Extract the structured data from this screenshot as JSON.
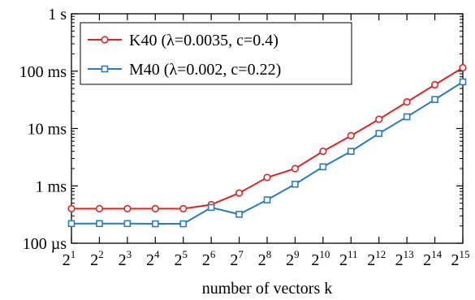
{
  "chart_data": {
    "type": "line",
    "xlabel": "number of vectors k",
    "ylabel": "",
    "x_scale": "log2",
    "y_scale": "log10",
    "x": [
      2,
      4,
      8,
      16,
      32,
      64,
      128,
      256,
      512,
      1024,
      2048,
      4096,
      8192,
      16384,
      32768
    ],
    "x_tick_labels": [
      {
        "base": "2",
        "exp": "1"
      },
      {
        "base": "2",
        "exp": "2"
      },
      {
        "base": "2",
        "exp": "3"
      },
      {
        "base": "2",
        "exp": "4"
      },
      {
        "base": "2",
        "exp": "5"
      },
      {
        "base": "2",
        "exp": "6"
      },
      {
        "base": "2",
        "exp": "7"
      },
      {
        "base": "2",
        "exp": "8"
      },
      {
        "base": "2",
        "exp": "9"
      },
      {
        "base": "2",
        "exp": "10"
      },
      {
        "base": "2",
        "exp": "11"
      },
      {
        "base": "2",
        "exp": "12"
      },
      {
        "base": "2",
        "exp": "13"
      },
      {
        "base": "2",
        "exp": "14"
      },
      {
        "base": "2",
        "exp": "15"
      }
    ],
    "xlim": [
      2,
      32768
    ],
    "ylim_seconds": [
      0.0001,
      1
    ],
    "y_ticks": [
      {
        "value": 1,
        "label": "1 s"
      },
      {
        "value": 0.1,
        "label": "100 ms"
      },
      {
        "value": 0.01,
        "label": "10 ms"
      },
      {
        "value": 0.001,
        "label": "1 ms"
      },
      {
        "value": 0.0001,
        "label": "100 µs"
      }
    ],
    "grid": false,
    "legend_position": "top-left",
    "series": [
      {
        "name": "K40",
        "legend_label": "K40  (λ=0.0035, c=0.4)",
        "color": "#d62728",
        "marker": "circle",
        "values": [
          0.0004,
          0.0004,
          0.0004,
          0.0004,
          0.0004,
          0.00047,
          0.00075,
          0.0014,
          0.002,
          0.004,
          0.0075,
          0.0145,
          0.029,
          0.058,
          0.115
        ]
      },
      {
        "name": "M40",
        "legend_label": "M40  (λ=0.002, c=0.22)",
        "color": "#2b7bba",
        "marker": "square",
        "values": [
          0.00022,
          0.00022,
          0.00022,
          0.000218,
          0.000218,
          0.00042,
          0.00032,
          0.00057,
          0.00107,
          0.00215,
          0.004,
          0.0082,
          0.016,
          0.032,
          0.065
        ]
      }
    ]
  }
}
